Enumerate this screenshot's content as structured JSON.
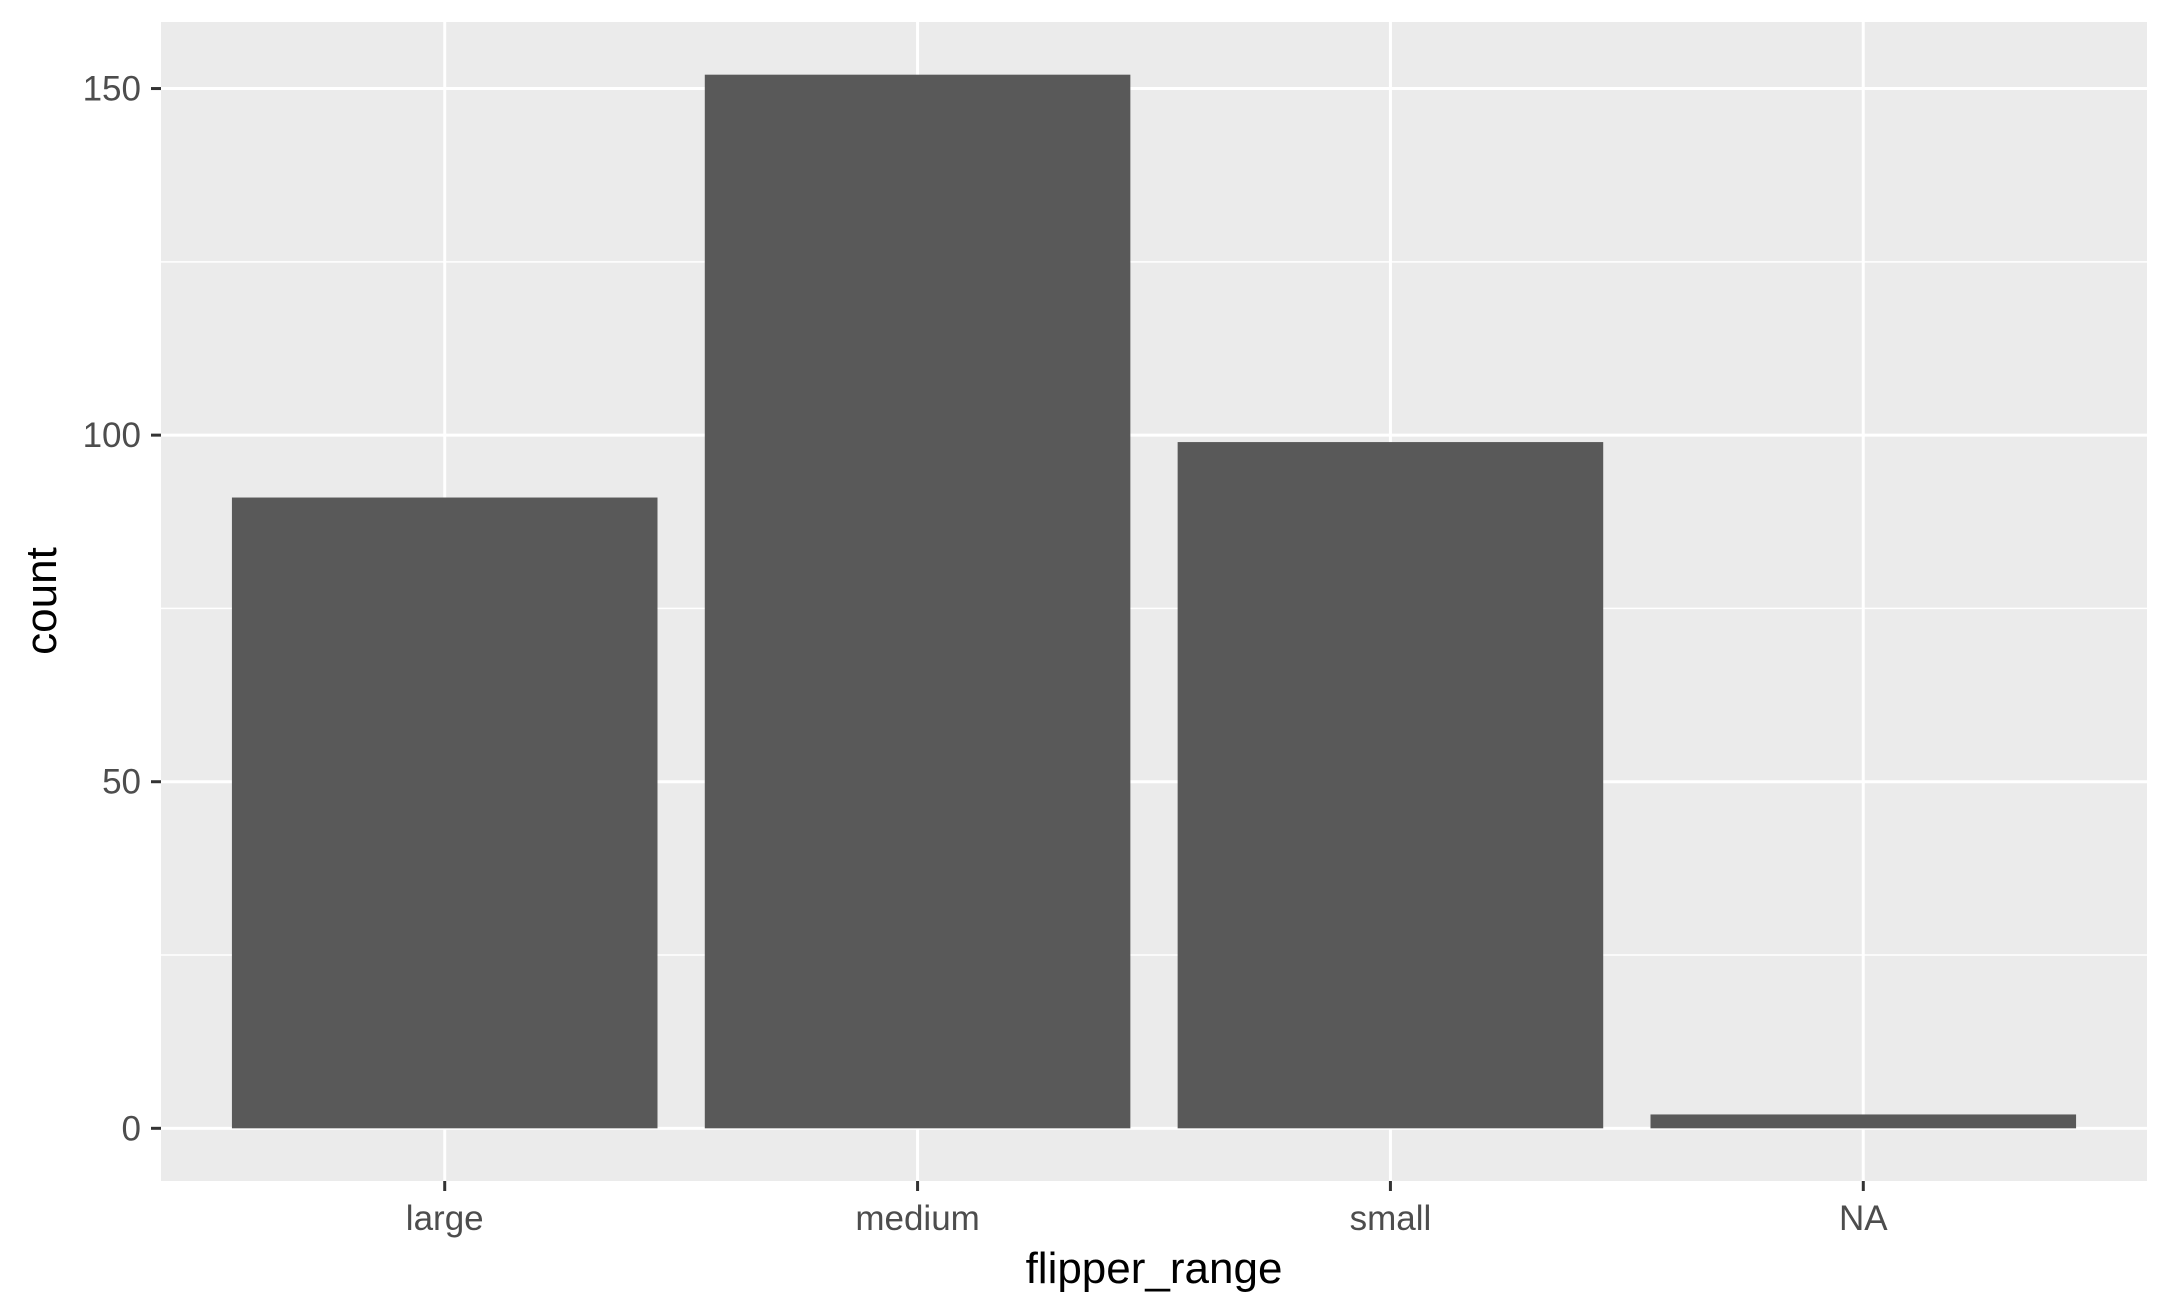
{
  "chart_data": {
    "type": "bar",
    "title": "",
    "xlabel": "flipper_range",
    "ylabel": "count",
    "categories": [
      "large",
      "medium",
      "small",
      "NA"
    ],
    "values": [
      91,
      152,
      99,
      2
    ],
    "ylim": [
      -7.6,
      159.6
    ],
    "yticks": [
      0,
      50,
      100,
      150
    ],
    "ytick_labels": [
      "0",
      "50",
      "100",
      "150"
    ],
    "y_minor_gridlines": [
      25,
      75,
      125
    ],
    "grid": true,
    "legend": "none",
    "colors": {
      "bar": "#595959",
      "panel_background": "#ebebeb",
      "gridline": "#ffffff",
      "tick_text": "#4d4d4d",
      "axis_title": "#000000",
      "tick_mark": "#333333"
    }
  }
}
